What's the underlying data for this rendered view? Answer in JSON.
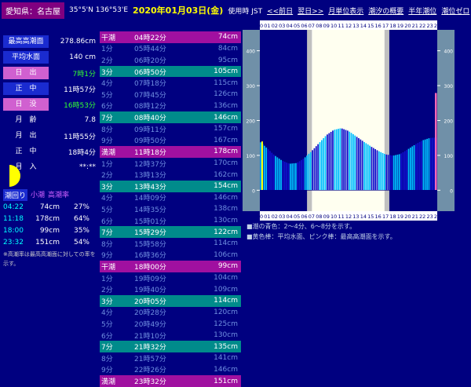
{
  "header": {
    "prefecture": "愛知県：名古屋",
    "coords": "35°5'N 136°53'E",
    "date": "2020年01月03日(金)",
    "tz": "使用時 JST",
    "links": [
      "<<前日",
      "翌日>>",
      "月単位表示",
      "潮汐の概要",
      "半年潮位",
      "潮位ゼロ"
    ]
  },
  "info": [
    {
      "label": "最高高潮面",
      "value": "278.86cm",
      "style": "blue",
      "val_style": ""
    },
    {
      "label": "平均水面",
      "value": "140 cm",
      "style": "blue",
      "val_style": ""
    },
    {
      "label": "日　出",
      "value": "7時1分",
      "style": "pink",
      "val_style": "green"
    },
    {
      "label": "正　中",
      "value": "11時57分",
      "style": "blue",
      "val_style": ""
    },
    {
      "label": "日　没",
      "value": "16時53分",
      "style": "pink",
      "val_style": "green"
    },
    {
      "label": "月　齢",
      "value": "7.8",
      "style": "",
      "val_style": ""
    },
    {
      "label": "月　出",
      "value": "11時55分",
      "style": "",
      "val_style": ""
    },
    {
      "label": "正　中",
      "value": "18時4分",
      "style": "",
      "val_style": ""
    },
    {
      "label": "月　入",
      "value": "**:**",
      "style": "",
      "val_style": ""
    }
  ],
  "tide_header": {
    "a": "潮回り",
    "b": "小潮",
    "c": "高潮率"
  },
  "tides": [
    {
      "time": "04:22",
      "height": "74cm",
      "rate": "27%"
    },
    {
      "time": "11:18",
      "height": "178cm",
      "rate": "64%"
    },
    {
      "time": "18:00",
      "height": "99cm",
      "rate": "35%"
    },
    {
      "time": "23:32",
      "height": "151cm",
      "rate": "54%"
    }
  ],
  "note": "※高潮率は最高高潮面に対しての率を示す。",
  "table": [
    {
      "c1": "干潮",
      "c2": "04時22分",
      "c3": "74cm",
      "style": "pink"
    },
    {
      "c1": "1分",
      "c2": "05時44分",
      "c3": "84cm",
      "style": ""
    },
    {
      "c1": "2分",
      "c2": "06時20分",
      "c3": "95cm",
      "style": ""
    },
    {
      "c1": "3分",
      "c2": "06時50分",
      "c3": "105cm",
      "style": "teal"
    },
    {
      "c1": "4分",
      "c2": "07時18分",
      "c3": "115cm",
      "style": ""
    },
    {
      "c1": "5分",
      "c2": "07時45分",
      "c3": "126cm",
      "style": ""
    },
    {
      "c1": "6分",
      "c2": "08時12分",
      "c3": "136cm",
      "style": ""
    },
    {
      "c1": "7分",
      "c2": "08時40分",
      "c3": "146cm",
      "style": "teal"
    },
    {
      "c1": "8分",
      "c2": "09時11分",
      "c3": "157cm",
      "style": ""
    },
    {
      "c1": "9分",
      "c2": "09時50分",
      "c3": "167cm",
      "style": ""
    },
    {
      "c1": "満潮",
      "c2": "11時18分",
      "c3": "178cm",
      "style": "pink"
    },
    {
      "c1": "1分",
      "c2": "12時37分",
      "c3": "170cm",
      "style": ""
    },
    {
      "c1": "2分",
      "c2": "13時13分",
      "c3": "162cm",
      "style": ""
    },
    {
      "c1": "3分",
      "c2": "13時43分",
      "c3": "154cm",
      "style": "teal"
    },
    {
      "c1": "4分",
      "c2": "14時09分",
      "c3": "146cm",
      "style": ""
    },
    {
      "c1": "5分",
      "c2": "14時35分",
      "c3": "138cm",
      "style": ""
    },
    {
      "c1": "6分",
      "c2": "15時01分",
      "c3": "130cm",
      "style": ""
    },
    {
      "c1": "7分",
      "c2": "15時29分",
      "c3": "122cm",
      "style": "teal"
    },
    {
      "c1": "8分",
      "c2": "15時58分",
      "c3": "114cm",
      "style": ""
    },
    {
      "c1": "9分",
      "c2": "16時36分",
      "c3": "106cm",
      "style": ""
    },
    {
      "c1": "干潮",
      "c2": "18時00分",
      "c3": "99cm",
      "style": "pink"
    },
    {
      "c1": "1分",
      "c2": "19時09分",
      "c3": "104cm",
      "style": ""
    },
    {
      "c1": "2分",
      "c2": "19時40分",
      "c3": "109cm",
      "style": ""
    },
    {
      "c1": "3分",
      "c2": "20時05分",
      "c3": "114cm",
      "style": "teal"
    },
    {
      "c1": "4分",
      "c2": "20時28分",
      "c3": "120cm",
      "style": ""
    },
    {
      "c1": "5分",
      "c2": "20時49分",
      "c3": "125cm",
      "style": ""
    },
    {
      "c1": "6分",
      "c2": "21時10分",
      "c3": "130cm",
      "style": ""
    },
    {
      "c1": "7分",
      "c2": "21時32分",
      "c3": "135cm",
      "style": "teal"
    },
    {
      "c1": "8分",
      "c2": "21時57分",
      "c3": "141cm",
      "style": ""
    },
    {
      "c1": "9分",
      "c2": "22時26分",
      "c3": "146cm",
      "style": ""
    },
    {
      "c1": "満潮",
      "c2": "23時32分",
      "c3": "151cm",
      "style": "pink"
    }
  ],
  "chart_data": {
    "type": "bar",
    "hour_labels": [
      "00",
      "01",
      "02",
      "03",
      "04",
      "05",
      "06",
      "07",
      "08",
      "09",
      "10",
      "11",
      "12",
      "13",
      "14",
      "15",
      "16",
      "17",
      "18",
      "19",
      "20",
      "21",
      "22",
      "23",
      "24"
    ],
    "y_ticks": [
      0,
      100,
      200,
      300,
      400
    ],
    "ylim": [
      -60,
      460
    ],
    "tide_curve_hourly": [
      140,
      120,
      100,
      85,
      76,
      78,
      92,
      112,
      135,
      158,
      173,
      178,
      170,
      155,
      140,
      126,
      113,
      103,
      99,
      104,
      117,
      131,
      143,
      150,
      151
    ],
    "mean_level_cm": 140,
    "highest_level_cm": 278.86,
    "sunrise_hour": 7.02,
    "sunset_hour": 16.88,
    "colors": {
      "light_bar": "#00bfff",
      "dark_bar": "#1010cc",
      "daylight": "#fffff0",
      "twilight": "#c0c0c0",
      "mean_bar": "#ffff00",
      "high_bar": "#ff69b4"
    }
  },
  "legend": [
    "■潮の青色：2～4分、6～8分を示す。",
    "■黄色棒：平均水面、ピンク棒：最高高潮面を示す。"
  ]
}
